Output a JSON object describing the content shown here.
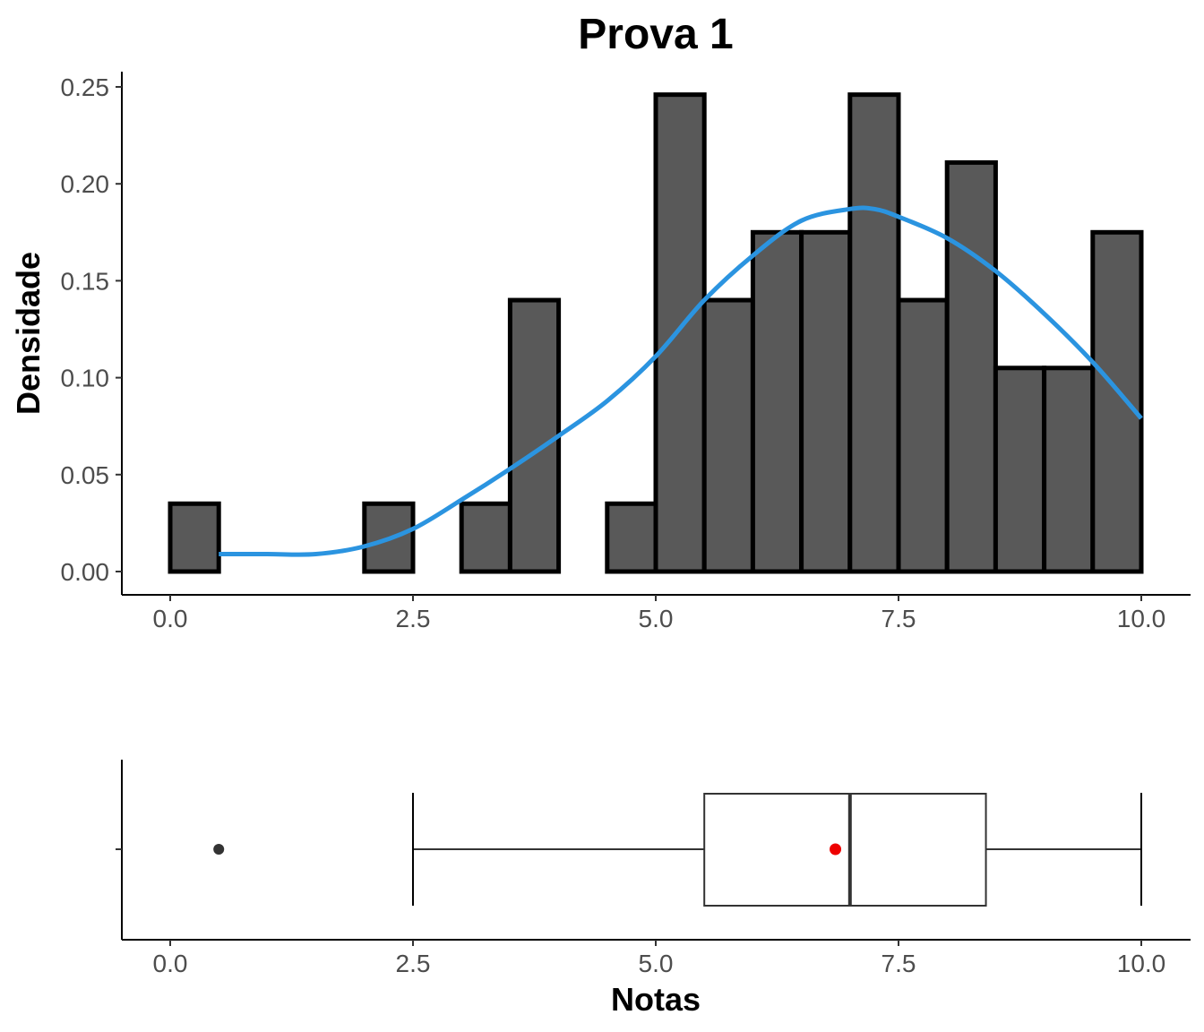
{
  "chart_data": [
    {
      "type": "histogram",
      "title": "Prova 1",
      "ylabel": "Densidade",
      "xlabel": "",
      "xlim": [
        -0.25,
        10.25
      ],
      "ylim": [
        -0.012,
        0.258
      ],
      "x_ticks": [
        0,
        2.5,
        5,
        7.5,
        10
      ],
      "x_tick_labels": [
        "0.0",
        "2.5",
        "5.0",
        "7.5",
        "10.0"
      ],
      "y_ticks": [
        0,
        0.05,
        0.1,
        0.15,
        0.2,
        0.25
      ],
      "y_tick_labels": [
        "0.00",
        "0.05",
        "0.10",
        "0.15",
        "0.20",
        "0.25"
      ],
      "bin_width": 0.5,
      "bins": [
        {
          "start": 0.0,
          "end": 0.5,
          "density": 0.035
        },
        {
          "start": 0.5,
          "end": 1.0,
          "density": 0.0
        },
        {
          "start": 1.0,
          "end": 1.5,
          "density": 0.0
        },
        {
          "start": 1.5,
          "end": 2.0,
          "density": 0.0
        },
        {
          "start": 2.0,
          "end": 2.5,
          "density": 0.035
        },
        {
          "start": 2.5,
          "end": 3.0,
          "density": 0.0
        },
        {
          "start": 3.0,
          "end": 3.5,
          "density": 0.035
        },
        {
          "start": 3.5,
          "end": 4.0,
          "density": 0.14
        },
        {
          "start": 4.0,
          "end": 4.5,
          "density": 0.0
        },
        {
          "start": 4.5,
          "end": 5.0,
          "density": 0.035
        },
        {
          "start": 5.0,
          "end": 5.5,
          "density": 0.246
        },
        {
          "start": 5.5,
          "end": 6.0,
          "density": 0.14
        },
        {
          "start": 6.0,
          "end": 6.5,
          "density": 0.175
        },
        {
          "start": 6.5,
          "end": 7.0,
          "density": 0.175
        },
        {
          "start": 7.0,
          "end": 7.5,
          "density": 0.246
        },
        {
          "start": 7.5,
          "end": 8.0,
          "density": 0.14
        },
        {
          "start": 8.0,
          "end": 8.5,
          "density": 0.211
        },
        {
          "start": 8.5,
          "end": 9.0,
          "density": 0.105
        },
        {
          "start": 9.0,
          "end": 9.5,
          "density": 0.105
        },
        {
          "start": 9.5,
          "end": 10.0,
          "density": 0.175
        }
      ],
      "density_curve": {
        "x": [
          0.5,
          1.0,
          1.5,
          2.0,
          2.5,
          3.0,
          3.5,
          4.0,
          4.5,
          5.0,
          5.5,
          6.0,
          6.5,
          7.0,
          7.25,
          7.5,
          8.0,
          8.5,
          9.0,
          9.5,
          10.0
        ],
        "y": [
          0.009,
          0.009,
          0.009,
          0.013,
          0.022,
          0.037,
          0.053,
          0.07,
          0.088,
          0.111,
          0.14,
          0.163,
          0.181,
          0.187,
          0.187,
          0.183,
          0.172,
          0.155,
          0.133,
          0.108,
          0.079
        ],
        "color": "#2b94e0"
      },
      "colors": {
        "bar_fill": "#595959",
        "bar_outline": "#000000",
        "axis": "#000000",
        "tick_text": "#4d4d4d"
      }
    },
    {
      "type": "boxplot",
      "xlabel": "Notas",
      "ylabel": "",
      "xlim": [
        -0.25,
        10.25
      ],
      "x_ticks": [
        0,
        2.5,
        5,
        7.5,
        10
      ],
      "x_tick_labels": [
        "0.0",
        "2.5",
        "5.0",
        "7.5",
        "10.0"
      ],
      "whisker_low": 2.5,
      "q1": 5.5,
      "median": 7.0,
      "q3": 8.4,
      "whisker_high": 10.0,
      "outliers": [
        0.5
      ],
      "mean": 6.85,
      "colors": {
        "box_line": "#333333",
        "outlier": "#333333",
        "mean_point": "#ee0000",
        "axis": "#000000"
      }
    }
  ]
}
